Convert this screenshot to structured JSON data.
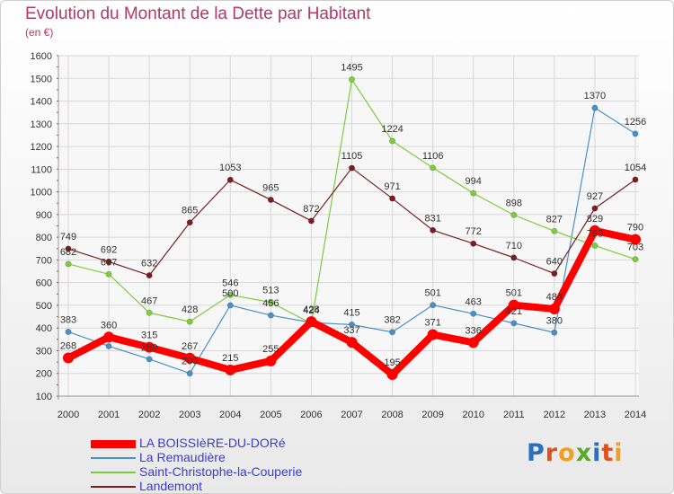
{
  "title": "Evolution du Montant de la Dette par Habitant",
  "unit": "(en €)",
  "logo": {
    "letters": [
      "P",
      "r",
      "o",
      "x",
      "i",
      "t",
      "i"
    ],
    "colors": [
      "#2a6fc0",
      "#e0501f",
      "#f0a020",
      "#5aaa2a",
      "#2a6fc0",
      "#e0501f",
      "#f0a020"
    ]
  },
  "chart_data": {
    "type": "line",
    "title": "Evolution du Montant de la Dette par Habitant",
    "ylabel": "(en €)",
    "ylim": [
      100,
      1600
    ],
    "yticks": [
      100,
      200,
      300,
      400,
      500,
      600,
      700,
      800,
      900,
      1000,
      1100,
      1200,
      1300,
      1400,
      1500,
      1600
    ],
    "categories": [
      "2000",
      "2001",
      "2002",
      "2003",
      "2004",
      "2005",
      "2006",
      "2007",
      "2008",
      "2009",
      "2010",
      "2011",
      "2012",
      "2013",
      "2014"
    ],
    "grid": true,
    "legend_position": "bottom",
    "series": [
      {
        "name": "LA BOISSIèRE-DU-DORé",
        "color": "#ff0000",
        "width": "thick",
        "values": [
          268,
          360,
          315,
          267,
          215,
          255,
          428,
          337,
          195,
          371,
          336,
          501,
          484,
          829,
          790
        ]
      },
      {
        "name": "La Remaudière",
        "color": "#4a90c8",
        "width": "thin",
        "values": [
          383,
          320,
          263,
          200,
          500,
          456,
          424,
          415,
          382,
          501,
          463,
          421,
          380,
          1370,
          1256
        ]
      },
      {
        "name": "Saint-Christophe-la-Couperie",
        "color": "#7ccc3c",
        "width": "thin",
        "values": [
          682,
          637,
          467,
          428,
          546,
          513,
          420,
          1495,
          1224,
          1106,
          994,
          898,
          827,
          763,
          703
        ]
      },
      {
        "name": "Landemont",
        "color": "#7a1e1e",
        "width": "thin",
        "values": [
          749,
          692,
          632,
          865,
          1053,
          965,
          872,
          1105,
          971,
          831,
          772,
          710,
          640,
          927,
          1054
        ]
      }
    ],
    "point_labels": [
      [
        "268",
        "360",
        "315",
        "267",
        "215",
        "255",
        "428",
        "337",
        "195",
        "371",
        "336",
        "501",
        "484",
        "829",
        "790"
      ],
      [
        "383",
        "",
        "",
        "200",
        "500",
        "456",
        "424",
        "415",
        "382",
        "501",
        "463",
        "421",
        "380",
        "1370",
        "1256"
      ],
      [
        "682",
        "637",
        "467",
        "428",
        "546",
        "513",
        "",
        "1495",
        "1224",
        "1106",
        "994",
        "898",
        "827",
        "763",
        "703"
      ],
      [
        "749",
        "692",
        "632",
        "865",
        "1053",
        "965",
        "872",
        "1105",
        "971",
        "831",
        "772",
        "710",
        "640",
        "927",
        "1054"
      ]
    ],
    "extra_labels": [
      "289"
    ]
  }
}
